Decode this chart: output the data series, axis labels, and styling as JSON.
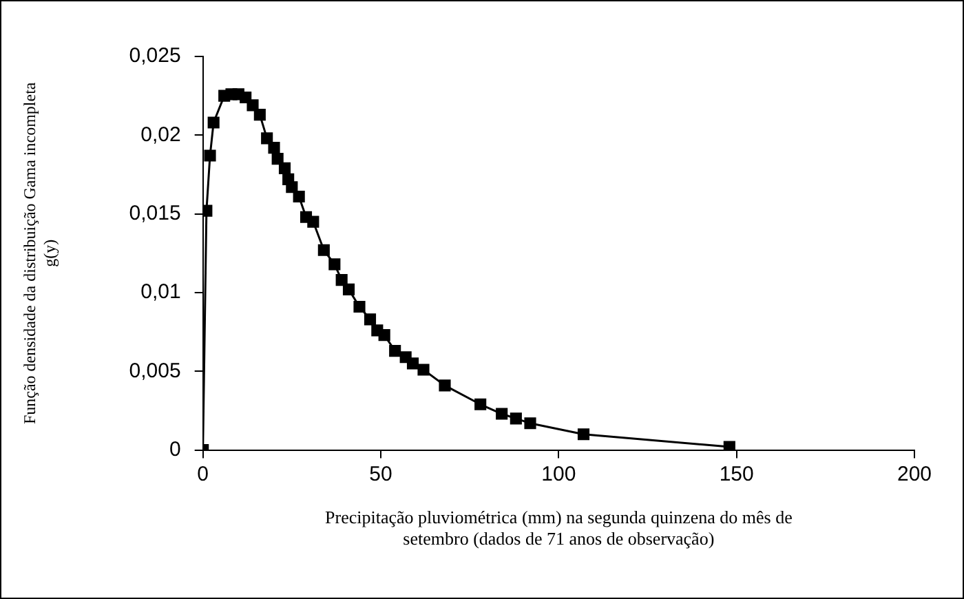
{
  "chart_data": {
    "type": "line",
    "xlabel": "Precipitação pluviométrica (mm) na segunda quinzena do mês de setembro (dados de 71 anos de observação)",
    "ylabel": "Função densidade da distribuição Gama incompleta g(y)",
    "x": [
      0,
      1,
      2,
      3,
      6,
      8,
      10,
      12,
      14,
      16,
      18,
      20,
      21,
      23,
      24,
      25,
      27,
      29,
      31,
      34,
      37,
      39,
      41,
      44,
      47,
      49,
      51,
      54,
      57,
      59,
      62,
      68,
      78,
      84,
      88,
      92,
      107,
      148
    ],
    "series": [
      {
        "color": "#000000",
        "values": [
          0,
          0.0152,
          0.0187,
          0.0208,
          0.0225,
          0.0226,
          0.0226,
          0.0224,
          0.0219,
          0.0213,
          0.0198,
          0.0192,
          0.0185,
          0.0179,
          0.0172,
          0.0167,
          0.0161,
          0.0148,
          0.0145,
          0.0127,
          0.0118,
          0.0108,
          0.0102,
          0.0091,
          0.0083,
          0.0076,
          0.0073,
          0.0063,
          0.0059,
          0.0055,
          0.0051,
          0.0041,
          0.0029,
          0.0023,
          0.002,
          0.0017,
          0.001,
          0.0002
        ]
      }
    ],
    "xlim": [
      0,
      200
    ],
    "xticks": [
      0,
      50,
      100,
      150,
      200
    ],
    "ylim": [
      0,
      0.025
    ],
    "yticks": [
      0,
      {
        "value": 0.005,
        "label": "0,005"
      },
      {
        "value": 0.01,
        "label": "0,01"
      },
      {
        "value": 0.015,
        "label": "0,015"
      },
      {
        "value": 0.02,
        "label": "0,02"
      },
      {
        "value": 0.025,
        "label": "0,025"
      }
    ],
    "grid": false,
    "legend": false,
    "marker": "square",
    "line_style": "solid"
  }
}
